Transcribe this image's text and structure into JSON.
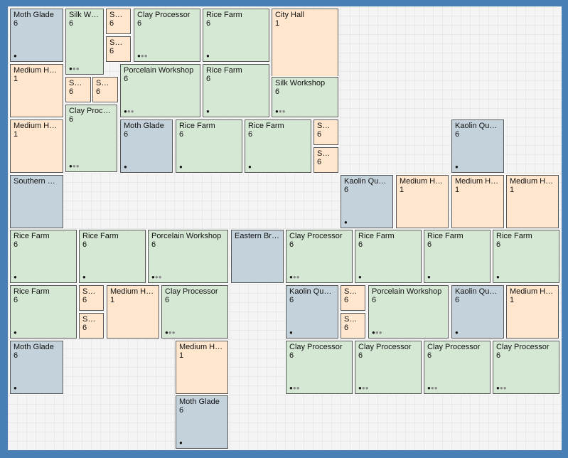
{
  "palette": {
    "green": "#d5e8d4",
    "orange": "#ffe6cc",
    "blue": "#c4d2dc",
    "background": "#4a7fb5"
  },
  "buildings": [
    {
      "name": "Moth Glade",
      "count": "6",
      "type": "blue",
      "dots_on": 1,
      "dots_total": 1
    },
    {
      "name": "Silk Wor...",
      "count": "6",
      "type": "green",
      "dots_on": 1,
      "dots_total": 3
    },
    {
      "name": "Sma...",
      "count": "6",
      "type": "orange",
      "dots_on": 0,
      "dots_total": 0
    },
    {
      "name": "Sma...",
      "count": "6",
      "type": "orange",
      "dots_on": 0,
      "dots_total": 0
    },
    {
      "name": "Clay Processor",
      "count": "6",
      "type": "green",
      "dots_on": 1,
      "dots_total": 3
    },
    {
      "name": "Rice Farm",
      "count": "6",
      "type": "green",
      "dots_on": 1,
      "dots_total": 1
    },
    {
      "name": "City Hall",
      "count": "1",
      "type": "orange",
      "dots_on": 0,
      "dots_total": 0
    },
    {
      "name": "Medium Home",
      "count": "1",
      "type": "orange",
      "dots_on": 0,
      "dots_total": 0
    },
    {
      "name": "Sma...",
      "count": "6",
      "type": "orange",
      "dots_on": 0,
      "dots_total": 0
    },
    {
      "name": "Sma...",
      "count": "6",
      "type": "orange",
      "dots_on": 0,
      "dots_total": 0
    },
    {
      "name": "Porcelain Workshop",
      "count": "6",
      "type": "green",
      "dots_on": 1,
      "dots_total": 3
    },
    {
      "name": "Rice Farm",
      "count": "6",
      "type": "green",
      "dots_on": 1,
      "dots_total": 1
    },
    {
      "name": "Silk Workshop",
      "count": "6",
      "type": "green",
      "dots_on": 1,
      "dots_total": 3
    },
    {
      "name": "Clay Processor",
      "count": "6",
      "type": "green",
      "dots_on": 1,
      "dots_total": 3
    },
    {
      "name": "Medium Home",
      "count": "1",
      "type": "orange",
      "dots_on": 0,
      "dots_total": 0
    },
    {
      "name": "Moth Glade",
      "count": "6",
      "type": "blue",
      "dots_on": 1,
      "dots_total": 1
    },
    {
      "name": "Rice Farm",
      "count": "6",
      "type": "green",
      "dots_on": 1,
      "dots_total": 1
    },
    {
      "name": "Rice Farm",
      "count": "6",
      "type": "green",
      "dots_on": 1,
      "dots_total": 1
    },
    {
      "name": "Sma...",
      "count": "6",
      "type": "orange",
      "dots_on": 0,
      "dots_total": 0
    },
    {
      "name": "Sma...",
      "count": "6",
      "type": "orange",
      "dots_on": 0,
      "dots_total": 0
    },
    {
      "name": "Kaolin Quarry",
      "count": "6",
      "type": "blue",
      "dots_on": 1,
      "dots_total": 1
    },
    {
      "name": "Southern Brid...",
      "count": "",
      "type": "blue",
      "dots_on": 0,
      "dots_total": 0
    },
    {
      "name": "Kaolin Quarry",
      "count": "6",
      "type": "blue",
      "dots_on": 1,
      "dots_total": 1
    },
    {
      "name": "Medium Home",
      "count": "1",
      "type": "orange",
      "dots_on": 0,
      "dots_total": 0
    },
    {
      "name": "Medium Home",
      "count": "1",
      "type": "orange",
      "dots_on": 0,
      "dots_total": 0
    },
    {
      "name": "Medium Home",
      "count": "1",
      "type": "orange",
      "dots_on": 0,
      "dots_total": 0
    },
    {
      "name": "Rice Farm",
      "count": "6",
      "type": "green",
      "dots_on": 1,
      "dots_total": 1
    },
    {
      "name": "Rice Farm",
      "count": "6",
      "type": "green",
      "dots_on": 1,
      "dots_total": 1
    },
    {
      "name": "Porcelain Workshop",
      "count": "6",
      "type": "green",
      "dots_on": 1,
      "dots_total": 3
    },
    {
      "name": "Eastern Bridge",
      "count": "",
      "type": "blue",
      "dots_on": 0,
      "dots_total": 0
    },
    {
      "name": "Clay Processor",
      "count": "6",
      "type": "green",
      "dots_on": 1,
      "dots_total": 3
    },
    {
      "name": "Rice Farm",
      "count": "6",
      "type": "green",
      "dots_on": 1,
      "dots_total": 1
    },
    {
      "name": "Rice Farm",
      "count": "6",
      "type": "green",
      "dots_on": 1,
      "dots_total": 1
    },
    {
      "name": "Rice Farm",
      "count": "6",
      "type": "green",
      "dots_on": 1,
      "dots_total": 1
    },
    {
      "name": "Rice Farm",
      "count": "6",
      "type": "green",
      "dots_on": 1,
      "dots_total": 1
    },
    {
      "name": "Sma...",
      "count": "6",
      "type": "orange",
      "dots_on": 0,
      "dots_total": 0
    },
    {
      "name": "Sma...",
      "count": "6",
      "type": "orange",
      "dots_on": 0,
      "dots_total": 0
    },
    {
      "name": "Medium Home",
      "count": "1",
      "type": "orange",
      "dots_on": 0,
      "dots_total": 0
    },
    {
      "name": "Clay Processor",
      "count": "6",
      "type": "green",
      "dots_on": 1,
      "dots_total": 3
    },
    {
      "name": "Kaolin Quarry",
      "count": "6",
      "type": "blue",
      "dots_on": 1,
      "dots_total": 1
    },
    {
      "name": "Sma...",
      "count": "6",
      "type": "orange",
      "dots_on": 0,
      "dots_total": 0
    },
    {
      "name": "Sma...",
      "count": "6",
      "type": "orange",
      "dots_on": 0,
      "dots_total": 0
    },
    {
      "name": "Porcelain Workshop",
      "count": "6",
      "type": "green",
      "dots_on": 1,
      "dots_total": 3
    },
    {
      "name": "Kaolin Quarry",
      "count": "6",
      "type": "blue",
      "dots_on": 1,
      "dots_total": 1
    },
    {
      "name": "Medium Home",
      "count": "1",
      "type": "orange",
      "dots_on": 0,
      "dots_total": 0
    },
    {
      "name": "Moth Glade",
      "count": "6",
      "type": "blue",
      "dots_on": 1,
      "dots_total": 1
    },
    {
      "name": "Medium Home",
      "count": "1",
      "type": "orange",
      "dots_on": 0,
      "dots_total": 0
    },
    {
      "name": "Clay Processor",
      "count": "6",
      "type": "green",
      "dots_on": 1,
      "dots_total": 3
    },
    {
      "name": "Clay Processor",
      "count": "6",
      "type": "green",
      "dots_on": 1,
      "dots_total": 3
    },
    {
      "name": "Clay Processor",
      "count": "6",
      "type": "green",
      "dots_on": 1,
      "dots_total": 3
    },
    {
      "name": "Clay Processor",
      "count": "6",
      "type": "green",
      "dots_on": 1,
      "dots_total": 3
    },
    {
      "name": "Moth Glade",
      "count": "6",
      "type": "blue",
      "dots_on": 1,
      "dots_total": 1
    }
  ]
}
